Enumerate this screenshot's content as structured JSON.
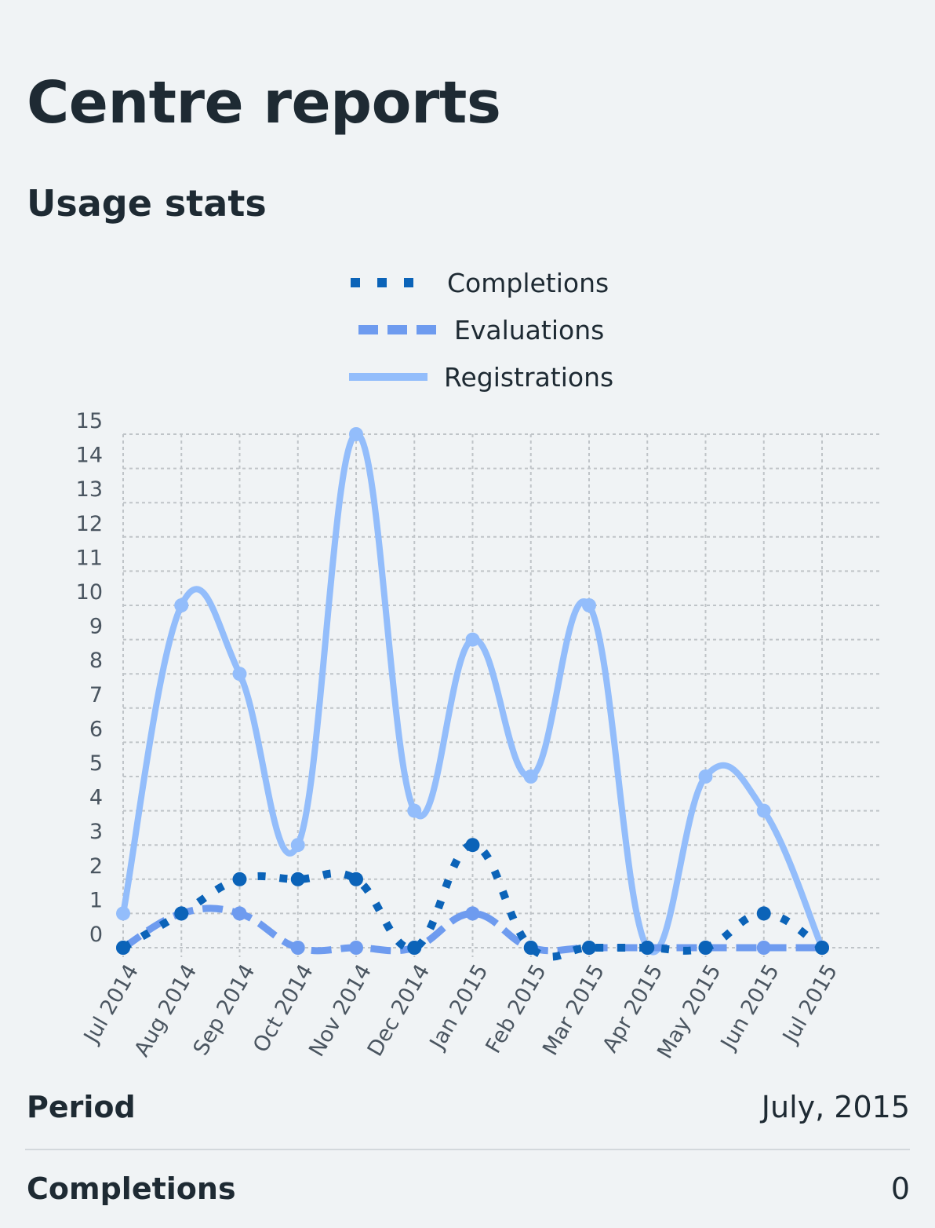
{
  "page": {
    "title": "Centre reports",
    "section_title": "Usage stats"
  },
  "summary": {
    "period_label": "Period",
    "period_value": "July, 2015",
    "completions_label": "Completions",
    "completions_value": "0"
  },
  "chart_data": {
    "type": "line",
    "categories": [
      "Jul 2014",
      "Aug 2014",
      "Sep 2014",
      "Oct 2014",
      "Nov 2014",
      "Dec 2014",
      "Jan 2015",
      "Feb 2015",
      "Mar 2015",
      "Apr 2015",
      "May 2015",
      "Jun 2015",
      "Jul 2015"
    ],
    "ylim": [
      0,
      15
    ],
    "yticks": [
      0,
      1,
      2,
      3,
      4,
      5,
      6,
      7,
      8,
      9,
      10,
      11,
      12,
      13,
      14,
      15
    ],
    "grid": true,
    "legend_position": "top",
    "series": [
      {
        "name": "Completions",
        "style": "dotted",
        "color": "#0b63b8",
        "values": [
          0,
          1,
          2,
          2,
          2,
          0,
          3,
          0,
          0,
          0,
          0,
          1,
          0
        ]
      },
      {
        "name": "Evaluations",
        "style": "dashed",
        "color": "#6e9bef",
        "values": [
          0,
          1,
          1,
          0,
          0,
          0,
          1,
          0,
          0,
          0,
          0,
          0,
          0
        ]
      },
      {
        "name": "Registrations",
        "style": "solid",
        "color": "#93bdfb",
        "values": [
          1,
          10,
          8,
          3,
          15,
          4,
          9,
          5,
          10,
          0,
          5,
          4,
          0
        ]
      }
    ]
  }
}
